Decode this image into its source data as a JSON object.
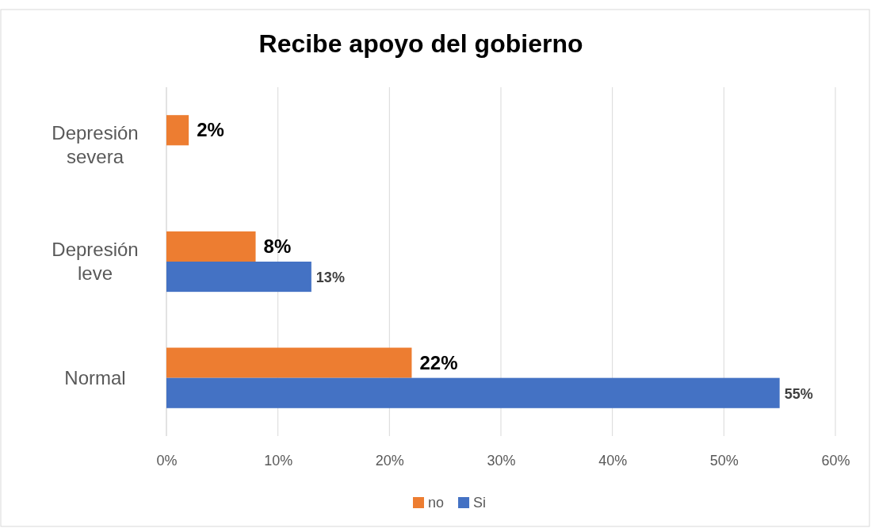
{
  "chart_data": {
    "type": "bar",
    "orientation": "horizontal",
    "title": "Recibe apoyo del gobierno",
    "categories": [
      "Depresión severa",
      "Depresión leve",
      "Normal"
    ],
    "series": [
      {
        "name": "no",
        "color": "#ed7d31",
        "values": [
          2,
          8,
          22
        ],
        "value_labels": [
          "2%",
          "8%",
          "22%"
        ]
      },
      {
        "name": "Si",
        "color": "#4472c4",
        "values": [
          null,
          13,
          55
        ],
        "value_labels": [
          null,
          "13%",
          "55%"
        ]
      }
    ],
    "xlim": [
      0,
      60
    ],
    "xticks": [
      {
        "value": 0,
        "label": "0%"
      },
      {
        "value": 10,
        "label": "10%"
      },
      {
        "value": 20,
        "label": "20%"
      },
      {
        "value": 30,
        "label": "30%"
      },
      {
        "value": 40,
        "label": "40%"
      },
      {
        "value": 50,
        "label": "50%"
      },
      {
        "value": 60,
        "label": "60%"
      }
    ],
    "grid": "x",
    "legend": "bottom"
  }
}
